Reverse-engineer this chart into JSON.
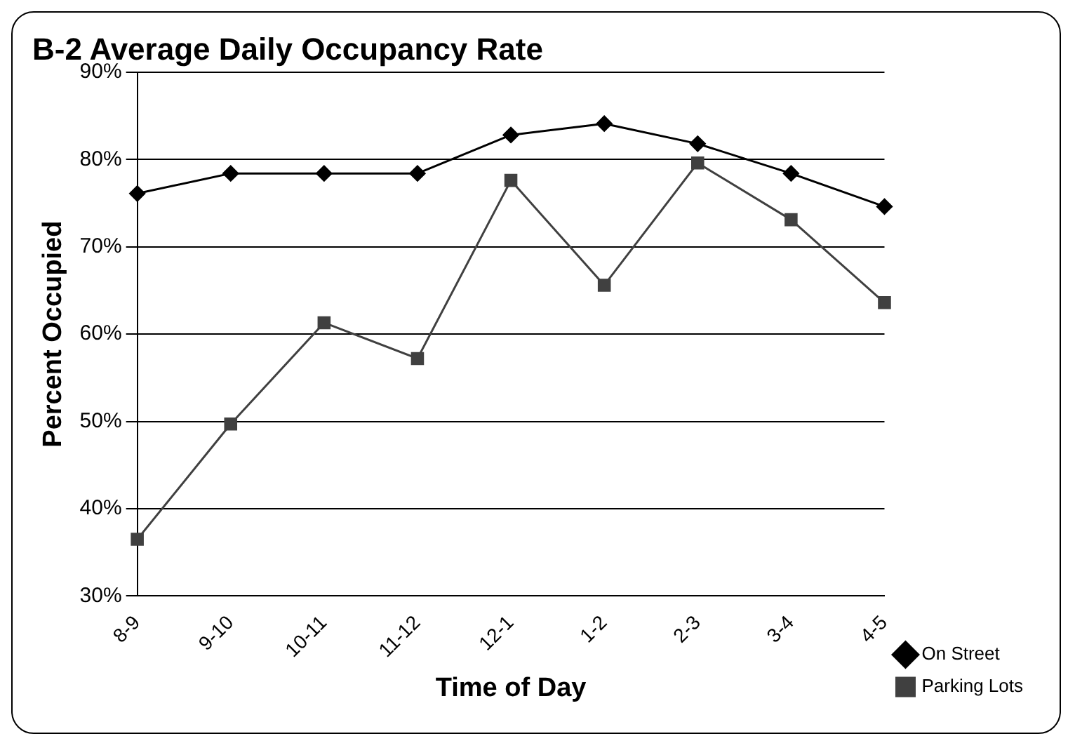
{
  "chart_data": {
    "type": "line",
    "title": "B-2 Average Daily Occupancy Rate",
    "xlabel": "Time of Day",
    "ylabel": "Percent Occupied",
    "categories": [
      "8-9",
      "9-10",
      "10-11",
      "11-12",
      "12-1",
      "1-2",
      "2-3",
      "3-4",
      "4-5"
    ],
    "series": [
      {
        "name": "On Street",
        "color": "#000000",
        "marker": "diamond",
        "values": [
          76.1,
          78.4,
          78.4,
          78.4,
          82.8,
          84.1,
          81.8,
          78.4,
          74.6
        ]
      },
      {
        "name": "Parking Lots",
        "color": "#404040",
        "marker": "square",
        "values": [
          36.5,
          49.7,
          61.3,
          57.2,
          77.6,
          65.6,
          79.6,
          73.1,
          63.6
        ]
      }
    ],
    "ylim": [
      30,
      90
    ],
    "yticks": [
      {
        "value": 30,
        "label": "30%"
      },
      {
        "value": 40,
        "label": "40%"
      },
      {
        "value": 50,
        "label": "50%"
      },
      {
        "value": 60,
        "label": "60%"
      },
      {
        "value": 70,
        "label": "70%"
      },
      {
        "value": 80,
        "label": "80%"
      },
      {
        "value": 90,
        "label": "90%"
      }
    ],
    "grid": "y",
    "legend": "bottom right",
    "line_style": "solid"
  }
}
